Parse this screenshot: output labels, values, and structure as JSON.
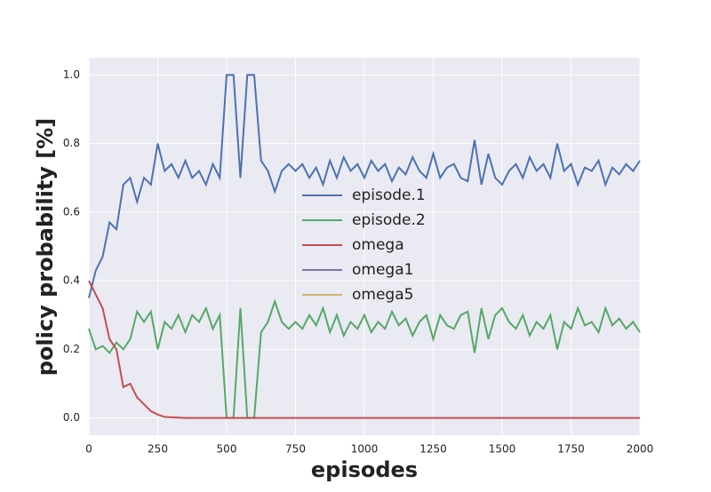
{
  "chart_data": {
    "type": "line",
    "xlabel": "episodes",
    "ylabel": "policy probability [%]",
    "x": [
      0,
      25,
      50,
      75,
      100,
      125,
      150,
      175,
      200,
      225,
      250,
      275,
      300,
      325,
      350,
      375,
      400,
      425,
      450,
      475,
      500,
      525,
      550,
      575,
      600,
      625,
      650,
      675,
      700,
      725,
      750,
      775,
      800,
      825,
      850,
      875,
      900,
      925,
      950,
      975,
      1000,
      1025,
      1050,
      1075,
      1100,
      1125,
      1150,
      1175,
      1200,
      1225,
      1250,
      1275,
      1300,
      1325,
      1350,
      1375,
      1400,
      1425,
      1450,
      1475,
      1500,
      1525,
      1550,
      1575,
      1600,
      1625,
      1650,
      1675,
      1700,
      1725,
      1750,
      1775,
      1800,
      1825,
      1850,
      1875,
      1900,
      1925,
      1950,
      1975,
      2000
    ],
    "series": [
      {
        "name": "episode.1",
        "color": "#4c72b0",
        "values": [
          0.35,
          0.43,
          0.47,
          0.57,
          0.55,
          0.68,
          0.7,
          0.63,
          0.7,
          0.68,
          0.8,
          0.72,
          0.74,
          0.7,
          0.75,
          0.7,
          0.72,
          0.68,
          0.74,
          0.7,
          1.0,
          1.0,
          0.7,
          1.0,
          1.0,
          0.75,
          0.72,
          0.66,
          0.72,
          0.74,
          0.72,
          0.74,
          0.7,
          0.73,
          0.68,
          0.75,
          0.7,
          0.76,
          0.72,
          0.74,
          0.7,
          0.75,
          0.72,
          0.74,
          0.69,
          0.73,
          0.71,
          0.76,
          0.72,
          0.7,
          0.77,
          0.7,
          0.73,
          0.74,
          0.7,
          0.69,
          0.81,
          0.68,
          0.77,
          0.7,
          0.68,
          0.72,
          0.74,
          0.7,
          0.76,
          0.72,
          0.74,
          0.7,
          0.8,
          0.72,
          0.74,
          0.68,
          0.73,
          0.72,
          0.75,
          0.68,
          0.73,
          0.71,
          0.74,
          0.72,
          0.75
        ]
      },
      {
        "name": "episode.2",
        "color": "#55a868",
        "values": [
          0.26,
          0.2,
          0.21,
          0.19,
          0.22,
          0.2,
          0.23,
          0.31,
          0.28,
          0.31,
          0.2,
          0.28,
          0.26,
          0.3,
          0.25,
          0.3,
          0.28,
          0.32,
          0.26,
          0.3,
          0,
          0,
          0.32,
          0,
          0,
          0.25,
          0.28,
          0.34,
          0.28,
          0.26,
          0.28,
          0.26,
          0.3,
          0.27,
          0.32,
          0.25,
          0.3,
          0.24,
          0.28,
          0.26,
          0.3,
          0.25,
          0.28,
          0.26,
          0.31,
          0.27,
          0.29,
          0.24,
          0.28,
          0.3,
          0.23,
          0.3,
          0.27,
          0.26,
          0.3,
          0.31,
          0.19,
          0.32,
          0.23,
          0.3,
          0.32,
          0.28,
          0.26,
          0.3,
          0.24,
          0.28,
          0.26,
          0.3,
          0.2,
          0.28,
          0.26,
          0.32,
          0.27,
          0.28,
          0.25,
          0.32,
          0.27,
          0.29,
          0.26,
          0.28,
          0.25
        ]
      },
      {
        "name": "omega",
        "color": "#c44e52",
        "values": [
          0.4,
          0.36,
          0.32,
          0.23,
          0.2,
          0.09,
          0.1,
          0.06,
          0.04,
          0.02,
          0.01,
          0.003,
          0.002,
          0.001,
          0,
          0,
          0,
          0,
          0,
          0,
          0,
          0,
          0,
          0,
          0,
          0,
          0,
          0,
          0,
          0,
          0,
          0,
          0,
          0,
          0,
          0,
          0,
          0,
          0,
          0,
          0,
          0,
          0,
          0,
          0,
          0,
          0,
          0,
          0,
          0,
          0,
          0,
          0,
          0,
          0,
          0,
          0,
          0,
          0,
          0,
          0,
          0,
          0,
          0,
          0,
          0,
          0,
          0,
          0,
          0,
          0,
          0,
          0,
          0,
          0,
          0,
          0,
          0,
          0,
          0,
          0
        ]
      },
      {
        "name": "omega1",
        "color": "#8172b2",
        "values": [
          null,
          null,
          null,
          null,
          null,
          null,
          null,
          null,
          null,
          null,
          null,
          null,
          null,
          null,
          null,
          null,
          null,
          null,
          null,
          null,
          null,
          null,
          null,
          null,
          null,
          null,
          null,
          null,
          null,
          null,
          null,
          null,
          null,
          null,
          null,
          null,
          null,
          null,
          null,
          null,
          null,
          null,
          null,
          null,
          null,
          null,
          null,
          null,
          null,
          null,
          null,
          null,
          null,
          null,
          null,
          null,
          null,
          null,
          null,
          null,
          null,
          null,
          null,
          null,
          null,
          null,
          null,
          null,
          null,
          null,
          null,
          null,
          null,
          null,
          null,
          null,
          null,
          null,
          null,
          null,
          null
        ]
      },
      {
        "name": "omega5",
        "color": "#ccb974",
        "values": [
          null,
          null,
          null,
          null,
          null,
          null,
          null,
          null,
          null,
          null,
          null,
          null,
          null,
          null,
          null,
          null,
          null,
          null,
          null,
          null,
          null,
          null,
          null,
          null,
          null,
          null,
          null,
          null,
          null,
          null,
          null,
          null,
          null,
          null,
          null,
          null,
          null,
          null,
          null,
          null,
          null,
          null,
          null,
          null,
          null,
          null,
          null,
          null,
          null,
          null,
          null,
          null,
          null,
          null,
          null,
          null,
          null,
          null,
          null,
          null,
          null,
          null,
          null,
          null,
          null,
          null,
          null,
          null,
          null,
          null,
          null,
          null,
          null,
          null,
          null,
          null,
          null,
          null,
          null,
          null,
          null
        ]
      }
    ],
    "xlim": [
      0,
      2000
    ],
    "xticks": [
      0,
      250,
      500,
      750,
      1000,
      1250,
      1500,
      1750,
      2000
    ],
    "ylim": [
      -0.05,
      1.05
    ],
    "yticks": [
      {
        "value": 0,
        "label": "0.0"
      },
      {
        "value": 0.2,
        "label": "0.2"
      },
      {
        "value": 0.4,
        "label": "0.4"
      },
      {
        "value": 0.6,
        "label": "0.6"
      },
      {
        "value": 0.8,
        "label": "0.8"
      },
      {
        "value": 1.0,
        "label": "1.0"
      }
    ],
    "grid": true,
    "legend": "center"
  }
}
